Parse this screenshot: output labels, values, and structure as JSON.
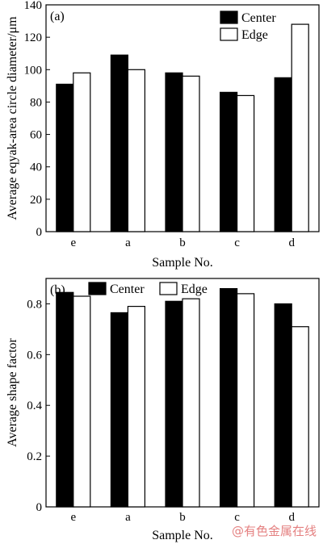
{
  "watermark": "@有色金属在线",
  "chart_data": [
    {
      "type": "bar",
      "panel_label": "(a)",
      "categories": [
        "e",
        "a",
        "b",
        "c",
        "d"
      ],
      "series": [
        {
          "name": "Center",
          "values": [
            91,
            109,
            98,
            86,
            95
          ]
        },
        {
          "name": "Edge",
          "values": [
            98,
            100,
            96,
            84,
            128
          ]
        }
      ],
      "xlabel": "Sample No.",
      "ylabel": "Average eqyak-area circle diameter/μm",
      "ylim": [
        0,
        140
      ],
      "yticks": [
        "0",
        "20",
        "40",
        "60",
        "80",
        "100",
        "120",
        "140"
      ],
      "legend_position": "top-right",
      "grid": false
    },
    {
      "type": "bar",
      "panel_label": "(b)",
      "categories": [
        "e",
        "a",
        "b",
        "c",
        "d"
      ],
      "series": [
        {
          "name": "Center",
          "values": [
            0.845,
            0.765,
            0.81,
            0.86,
            0.8
          ]
        },
        {
          "name": "Edge",
          "values": [
            0.83,
            0.79,
            0.82,
            0.84,
            0.71
          ]
        }
      ],
      "xlabel": "Sample No.",
      "ylabel": "Average shape factor",
      "ylim": [
        0,
        0.9
      ],
      "yticks": [
        "0",
        "0.2",
        "0.4",
        "0.6",
        "0.8"
      ],
      "legend_position": "top",
      "grid": false
    }
  ],
  "colors": {
    "center_fill": "#000000",
    "edge_fill": "#ffffff",
    "axis": "#000000"
  }
}
